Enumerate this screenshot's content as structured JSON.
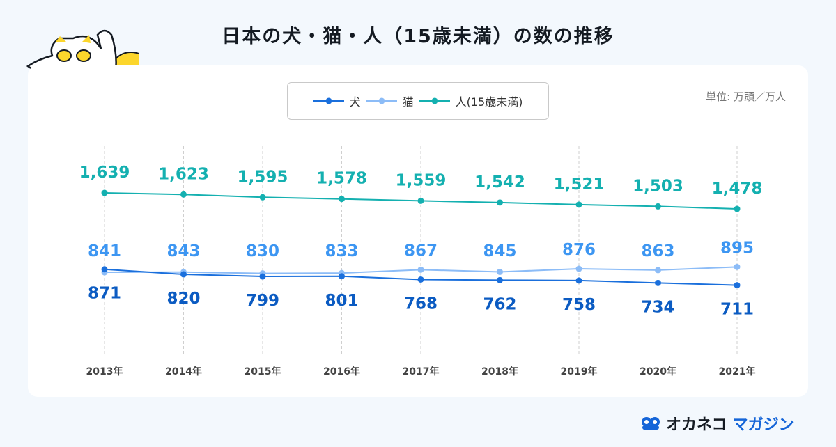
{
  "title": "日本の犬・猫・人（15歳未満）の数の推移",
  "unit_label": "単位: 万頭／万人",
  "brand": {
    "part1": "オカネコ",
    "part2": "マガジン"
  },
  "chart_data": {
    "type": "line",
    "title": "日本の犬・猫・人（15歳未満）の数の推移",
    "categories": [
      "2013年",
      "2014年",
      "2015年",
      "2016年",
      "2017年",
      "2018年",
      "2019年",
      "2020年",
      "2021年"
    ],
    "series": [
      {
        "name": "犬",
        "color": "#1a6fdc",
        "values": [
          871,
          820,
          799,
          801,
          768,
          762,
          758,
          734,
          711
        ],
        "label_pos": "below"
      },
      {
        "name": "猫",
        "color": "#8cbcf7",
        "values": [
          841,
          843,
          830,
          833,
          867,
          845,
          876,
          863,
          895
        ],
        "label_pos": "above"
      },
      {
        "name": "人(15歳未満)",
        "color": "#14b0b0",
        "values": [
          1639,
          1623,
          1595,
          1578,
          1559,
          1542,
          1521,
          1503,
          1478
        ],
        "label_pos": "above"
      }
    ],
    "label_colors": {
      "犬": "#0b5bc2",
      "猫": "#3d96f2",
      "人(15歳未満)": "#14b0b0"
    },
    "grid": "vertical dashed",
    "legend": "top-center"
  }
}
